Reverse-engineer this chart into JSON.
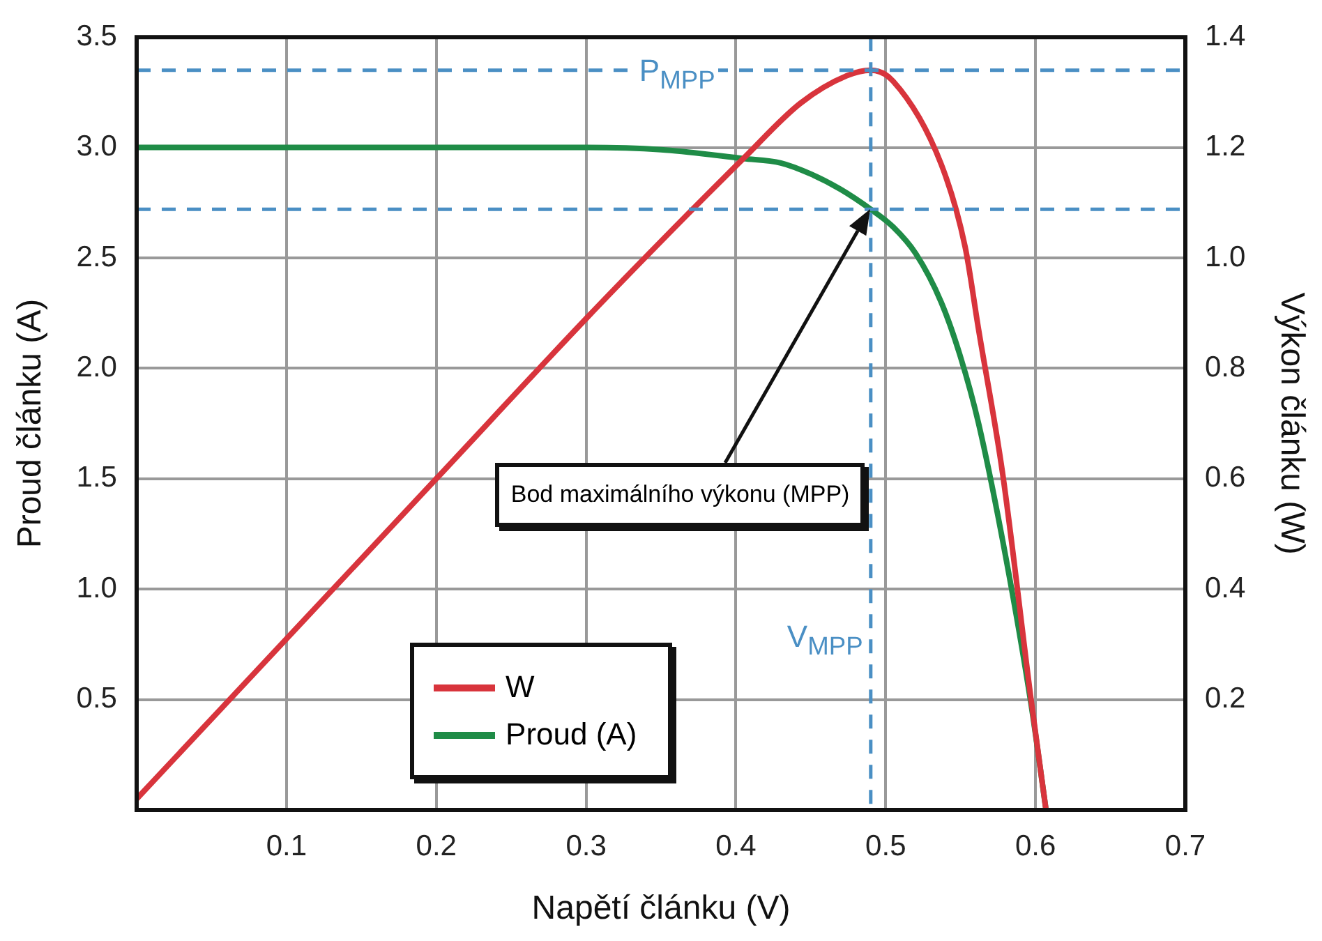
{
  "chart_data": {
    "type": "line",
    "xlabel": "Napětí článku (V)",
    "ylabel": "Proud článku (A)",
    "y2label": "Výkon článku (W)",
    "xlim": [
      0,
      0.7
    ],
    "xticks": [
      0.1,
      0.2,
      0.3,
      0.4,
      0.5,
      0.6,
      0.7
    ],
    "ylim": [
      0,
      3.5
    ],
    "yticks": [
      0.5,
      {
        "value": 1,
        "label": "1.0"
      },
      1.5,
      {
        "value": 2,
        "label": "2.0"
      },
      2.5,
      {
        "value": 3,
        "label": "3.0"
      },
      3.5
    ],
    "y2lim": [
      0,
      1.4
    ],
    "y2ticks": [
      0.2,
      0.4,
      0.6,
      0.8,
      {
        "value": 1,
        "label": "1.0"
      },
      1.2,
      1.4
    ],
    "series": [
      {
        "name": "W",
        "color": "#d8343c",
        "axis": "y2",
        "x": [
          0,
          0.1,
          0.2,
          0.3,
          0.35,
          0.405,
          0.443,
          0.474,
          0.49,
          0.505,
          0.537,
          0.553,
          0.562,
          0.578,
          0.597,
          0.607
        ],
        "values": [
          0.02,
          0.31,
          0.6,
          0.89,
          1.03,
          1.18,
          1.28,
          1.33,
          1.34,
          1.32,
          1.17,
          1.02,
          0.87,
          0.61,
          0.2,
          0
        ]
      },
      {
        "name": "Proud (A)",
        "color": "#1f8c47",
        "axis": "y",
        "x": [
          0,
          0.1,
          0.2,
          0.3,
          0.35,
          0.405,
          0.43,
          0.45,
          0.47,
          0.49,
          0.505,
          0.52,
          0.537,
          0.55,
          0.562,
          0.58,
          0.597,
          0.607
        ],
        "values": [
          3.0,
          3.0,
          3.0,
          3.0,
          2.99,
          2.95,
          2.93,
          2.88,
          2.81,
          2.72,
          2.64,
          2.52,
          2.3,
          2.05,
          1.75,
          1.15,
          0.48,
          0
        ]
      }
    ],
    "ref_lines": [
      {
        "axis": "y2",
        "value": 1.34,
        "label": "P$_{MPP}$",
        "color": "#4a8fc4",
        "line_style": "dashed"
      },
      {
        "axis": "y",
        "value": 2.72,
        "color": "#4a8fc4",
        "line_style": "dashed"
      },
      {
        "axis": "x",
        "value": 0.49,
        "label": "V$_{MPP}$",
        "color": "#4a8fc4",
        "line_style": "dashed"
      }
    ],
    "annotations": [
      "Bod maximálního výkonu  (MPP)"
    ],
    "grid": true,
    "legend": "bottom left",
    "marker": "none",
    "line_style": "solid"
  }
}
